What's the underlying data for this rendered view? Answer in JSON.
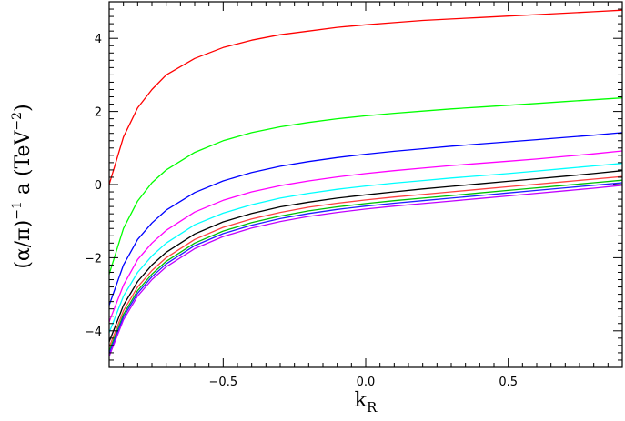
{
  "chart_data": {
    "type": "line",
    "xlabel_main": "k",
    "xlabel_sub": "R",
    "ylabel_parts": {
      "prefix": "(α/π)",
      "inv_exp": "−1",
      "mid": " a  (TeV",
      "unit_exp": "−2",
      "suffix": ")"
    },
    "xlim": [
      -0.9,
      0.9
    ],
    "ylim": [
      -5.0,
      5.0
    ],
    "x_ticks": [
      -0.5,
      0.0,
      0.5
    ],
    "x_tick_labels": [
      "−0.5",
      "0.0",
      "0.5"
    ],
    "y_ticks": [
      -4,
      -2,
      0,
      2,
      4
    ],
    "y_tick_labels": [
      "−4",
      "−2",
      "0",
      "2",
      "4"
    ],
    "grid": false,
    "x": [
      -0.9,
      -0.85,
      -0.8,
      -0.75,
      -0.7,
      -0.6,
      -0.5,
      -0.4,
      -0.3,
      -0.2,
      -0.1,
      0.0,
      0.1,
      0.2,
      0.3,
      0.4,
      0.5,
      0.6,
      0.7,
      0.8,
      0.9
    ],
    "series": [
      {
        "color": "#ff0000",
        "values": [
          0.0,
          1.3,
          2.1,
          2.6,
          3.0,
          3.45,
          3.75,
          3.95,
          4.1,
          4.2,
          4.3,
          4.37,
          4.43,
          4.49,
          4.53,
          4.57,
          4.61,
          4.65,
          4.69,
          4.73,
          4.77
        ]
      },
      {
        "color": "#00ff00",
        "values": [
          -2.45,
          -1.2,
          -0.45,
          0.05,
          0.4,
          0.88,
          1.2,
          1.42,
          1.58,
          1.7,
          1.8,
          1.88,
          1.95,
          2.01,
          2.07,
          2.12,
          2.17,
          2.22,
          2.27,
          2.32,
          2.37
        ]
      },
      {
        "color": "#0000ff",
        "values": [
          -3.3,
          -2.2,
          -1.5,
          -1.05,
          -0.7,
          -0.22,
          0.1,
          0.33,
          0.5,
          0.63,
          0.74,
          0.83,
          0.91,
          0.98,
          1.05,
          1.11,
          1.17,
          1.23,
          1.29,
          1.35,
          1.42
        ]
      },
      {
        "color": "#ff00ff",
        "values": [
          -3.75,
          -2.75,
          -2.05,
          -1.6,
          -1.25,
          -0.75,
          -0.43,
          -0.2,
          -0.03,
          0.1,
          0.21,
          0.3,
          0.38,
          0.45,
          0.52,
          0.58,
          0.64,
          0.7,
          0.77,
          0.84,
          0.92
        ]
      },
      {
        "color": "#00ffff",
        "values": [
          -4.05,
          -3.05,
          -2.4,
          -1.95,
          -1.6,
          -1.1,
          -0.78,
          -0.55,
          -0.37,
          -0.24,
          -0.13,
          -0.04,
          0.04,
          0.11,
          0.18,
          0.24,
          0.3,
          0.37,
          0.44,
          0.51,
          0.58
        ]
      },
      {
        "color": "#000000",
        "values": [
          -4.3,
          -3.3,
          -2.65,
          -2.2,
          -1.85,
          -1.35,
          -1.02,
          -0.79,
          -0.61,
          -0.48,
          -0.37,
          -0.28,
          -0.2,
          -0.12,
          -0.05,
          0.02,
          0.09,
          0.16,
          0.23,
          0.3,
          0.38
        ]
      },
      {
        "color": "#ff4040",
        "values": [
          -4.45,
          -3.45,
          -2.8,
          -2.35,
          -2.0,
          -1.5,
          -1.17,
          -0.94,
          -0.76,
          -0.62,
          -0.51,
          -0.42,
          -0.34,
          -0.27,
          -0.2,
          -0.13,
          -0.06,
          0.01,
          0.08,
          0.15,
          0.22
        ]
      },
      {
        "color": "#00c000",
        "values": [
          -4.55,
          -3.55,
          -2.9,
          -2.45,
          -2.1,
          -1.6,
          -1.27,
          -1.04,
          -0.86,
          -0.72,
          -0.61,
          -0.52,
          -0.44,
          -0.37,
          -0.3,
          -0.23,
          -0.16,
          -0.09,
          -0.02,
          0.05,
          0.12
        ]
      },
      {
        "color": "#2020ff",
        "values": [
          -4.62,
          -3.62,
          -2.97,
          -2.52,
          -2.17,
          -1.67,
          -1.34,
          -1.11,
          -0.93,
          -0.79,
          -0.68,
          -0.59,
          -0.51,
          -0.44,
          -0.37,
          -0.3,
          -0.23,
          -0.16,
          -0.09,
          -0.02,
          0.05
        ]
      },
      {
        "color": "#c000ff",
        "values": [
          -4.7,
          -3.7,
          -3.05,
          -2.6,
          -2.25,
          -1.75,
          -1.42,
          -1.19,
          -1.01,
          -0.87,
          -0.76,
          -0.67,
          -0.59,
          -0.52,
          -0.45,
          -0.38,
          -0.31,
          -0.24,
          -0.17,
          -0.1,
          -0.02
        ]
      }
    ]
  }
}
